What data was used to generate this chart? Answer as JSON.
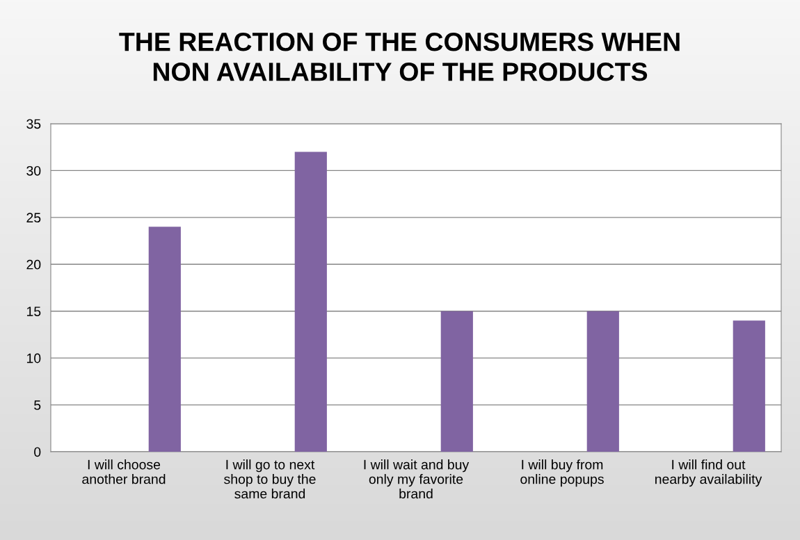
{
  "chart_data": {
    "type": "bar",
    "title": "THE REACTION OF THE CONSUMERS WHEN\nNON AVAILABILITY OF THE PRODUCTS",
    "categories": [
      "I will choose\nanother brand",
      "I will go to next\nshop to buy the\nsame brand",
      "I will wait and buy\nonly my favorite\nbrand",
      "I will buy from\nonline popups",
      "I will find out\nnearby availability"
    ],
    "values": [
      24,
      32,
      15,
      15,
      14
    ],
    "color": "#8064a2",
    "ylim": [
      0,
      35
    ],
    "yticks": [
      0,
      5,
      10,
      15,
      20,
      25,
      30,
      35
    ],
    "grid": "y"
  }
}
